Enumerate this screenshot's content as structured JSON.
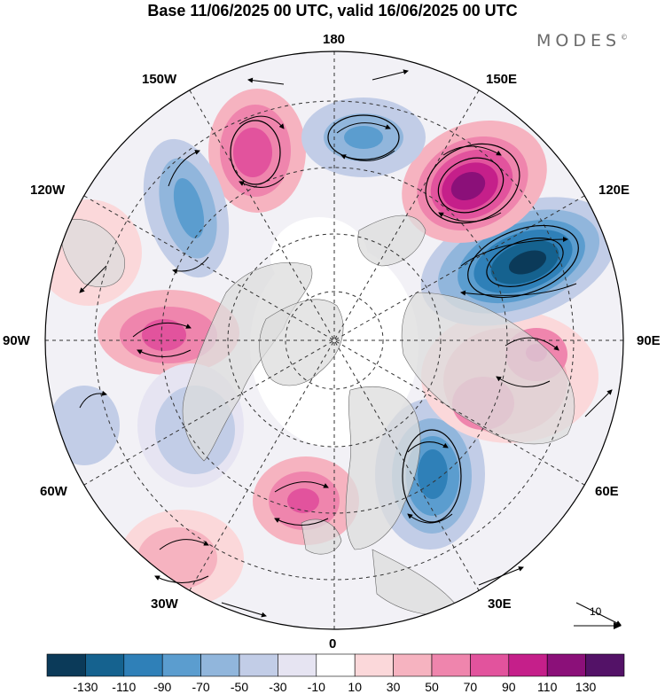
{
  "header": {
    "title": "Base 11/06/2025 00 UTC, valid 16/06/2025 00 UTC",
    "brand": "MODES",
    "brand_mark": "©"
  },
  "map": {
    "projection": "north-polar-stereographic",
    "meridian_labels": {
      "top": "180",
      "bottom": "0",
      "left": "90W",
      "right": "90E",
      "lbl_150w": "150W",
      "lbl_150e": "150E",
      "lbl_120w": "120W",
      "lbl_120e": "120E",
      "lbl_60w": "60W",
      "lbl_60e": "60E",
      "lbl_30w": "30W",
      "lbl_30e": "30E"
    },
    "reference_vector_label": "10"
  },
  "colorbar": {
    "labels": [
      "-130",
      "-110",
      "-90",
      "-70",
      "-50",
      "-30",
      "-10",
      "10",
      "30",
      "50",
      "70",
      "90",
      "110",
      "130"
    ],
    "colors": [
      "#0b3a59",
      "#15628f",
      "#2f80b8",
      "#5b9dcf",
      "#91b6dc",
      "#c2cde7",
      "#e6e4f2",
      "#ffffff",
      "#fbd8da",
      "#f6b3c0",
      "#ef85ad",
      "#e2539d",
      "#c51f8a",
      "#8b1079",
      "#531267"
    ]
  }
}
